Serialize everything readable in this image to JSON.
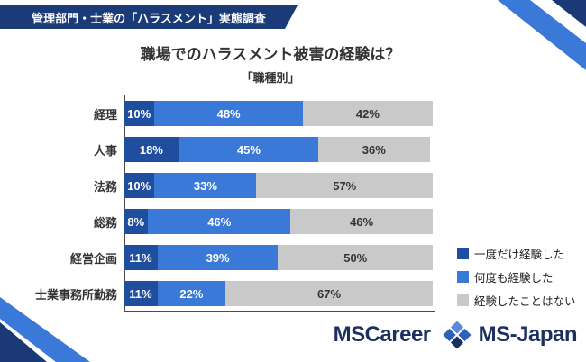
{
  "banner": {
    "title": "管理部門・士業の「ハラスメント」実態調査"
  },
  "chart_data": {
    "type": "bar",
    "stacked": true,
    "orientation": "horizontal",
    "title": "職場でのハラスメント被害の経験は？",
    "subtitle": "「職種別」",
    "categories": [
      "経理",
      "人事",
      "法務",
      "総務",
      "経営企画",
      "士業事務所勤務"
    ],
    "series": [
      {
        "name": "一度だけ経験した",
        "color": "#1f4e9e",
        "text_color": "#ffffff",
        "values": [
          10,
          18,
          10,
          8,
          11,
          11
        ]
      },
      {
        "name": "何度も経験した",
        "color": "#3b79d8",
        "text_color": "#ffffff",
        "values": [
          48,
          45,
          33,
          46,
          39,
          22
        ]
      },
      {
        "name": "経験したことはない",
        "color": "#c9c9c9",
        "text_color": "#333333",
        "values": [
          42,
          36,
          57,
          46,
          50,
          67
        ]
      }
    ],
    "value_suffix": "%",
    "xlim": [
      0,
      100
    ],
    "grid": false,
    "legend_position": "right"
  },
  "footer": {
    "logo_mscareer": "MSCareer",
    "logo_msjapan": "MS-Japan"
  },
  "colors": {
    "banner_bg": "#1a3a78",
    "ribbon_navy": "#1b3a75",
    "ribbon_blue": "#3b79d8",
    "axis": "#4a4a4a"
  }
}
